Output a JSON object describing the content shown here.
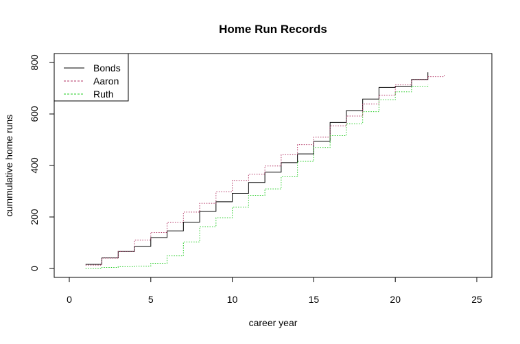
{
  "chart_data": {
    "type": "line",
    "title": "Home Run Records",
    "xlabel": "career year",
    "ylabel": "cummulative home runs",
    "xlim": [
      0,
      25
    ],
    "ylim": [
      0,
      800
    ],
    "xticks": [
      0,
      5,
      10,
      15,
      20,
      25
    ],
    "yticks": [
      0,
      200,
      400,
      600,
      800
    ],
    "step": true,
    "grid": false,
    "legend_position": "top-left",
    "series": [
      {
        "name": "Bonds",
        "color": "#000000",
        "dash": "solid",
        "x": [
          1,
          2,
          3,
          4,
          5,
          6,
          7,
          8,
          9,
          10,
          11,
          12,
          13,
          14,
          15,
          16,
          17,
          18,
          19,
          20,
          21,
          22
        ],
        "y": [
          16,
          41,
          66,
          86,
          120,
          146,
          180,
          222,
          259,
          292,
          334,
          374,
          411,
          445,
          494,
          567,
          613,
          658,
          703,
          708,
          734,
          762
        ]
      },
      {
        "name": "Aaron",
        "color": "#b03060",
        "dash": "dotted",
        "x": [
          1,
          2,
          3,
          4,
          5,
          6,
          7,
          8,
          9,
          10,
          11,
          12,
          13,
          14,
          15,
          16,
          17,
          18,
          19,
          20,
          21,
          22,
          23
        ],
        "y": [
          13,
          40,
          66,
          110,
          140,
          179,
          219,
          253,
          298,
          342,
          366,
          398,
          442,
          481,
          510,
          554,
          592,
          639,
          673,
          713,
          733,
          745,
          755
        ]
      },
      {
        "name": "Ruth",
        "color": "#22cc22",
        "dash": "dotted",
        "x": [
          1,
          2,
          3,
          4,
          5,
          6,
          7,
          8,
          9,
          10,
          11,
          12,
          13,
          14,
          15,
          16,
          17,
          18,
          19,
          20,
          21,
          22
        ],
        "y": [
          0,
          4,
          7,
          9,
          20,
          49,
          103,
          162,
          197,
          238,
          284,
          309,
          356,
          416,
          470,
          516,
          562,
          609,
          655,
          686,
          708,
          714
        ]
      }
    ]
  }
}
